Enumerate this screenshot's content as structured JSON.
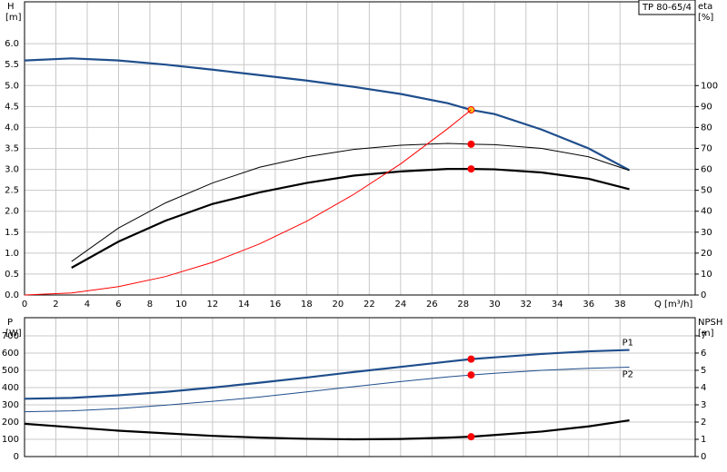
{
  "chart_data": [
    {
      "type": "line",
      "title": "TP 80-65/4",
      "ylabel": "H",
      "yunit": "[m]",
      "y2label": "eta",
      "y2unit": "[%]",
      "xlabel": "Q [m³/h]",
      "x": [
        0,
        3,
        6,
        9,
        12,
        15,
        18,
        21,
        24,
        27,
        28.5,
        30,
        33,
        36,
        38.6
      ],
      "xlim": [
        0,
        42.8
      ],
      "xticks": [
        0,
        2,
        4,
        6,
        8,
        10,
        12,
        14,
        16,
        18,
        20,
        22,
        24,
        26,
        28,
        30,
        32,
        34,
        36,
        38
      ],
      "ylim": [
        0,
        7
      ],
      "yticks": [
        {
          "value": 0,
          "label": "0.0"
        },
        {
          "value": 0.5,
          "label": "0.5"
        },
        {
          "value": 1,
          "label": "1.0"
        },
        {
          "value": 1.5,
          "label": "1.5"
        },
        {
          "value": 2,
          "label": "2.0"
        },
        {
          "value": 2.5,
          "label": "2.5"
        },
        {
          "value": 3,
          "label": "3.0"
        },
        {
          "value": 3.5,
          "label": "3.5"
        },
        {
          "value": 4,
          "label": "4.0"
        },
        {
          "value": 4.5,
          "label": "4.5"
        },
        {
          "value": 5,
          "label": "5.0"
        },
        {
          "value": 5.5,
          "label": "5.5"
        },
        {
          "value": 6,
          "label": "6.0"
        }
      ],
      "y2lim": [
        0,
        140
      ],
      "y2ticks": [
        0,
        10,
        20,
        30,
        40,
        50,
        60,
        70,
        80,
        90,
        100
      ],
      "grid": true,
      "operating_point": 28.5,
      "series": [
        {
          "color": "#1f4e8c",
          "style": "thick",
          "marker_color": "#f5c518",
          "values": [
            5.6,
            5.65,
            5.6,
            5.5,
            5.38,
            5.25,
            5.12,
            4.97,
            4.8,
            4.58,
            4.42,
            4.32,
            3.95,
            3.5,
            2.98
          ]
        },
        {
          "color": "#000000",
          "style": "thin",
          "axis": "y2",
          "marker_color": "#ff0000",
          "values": [
            null,
            16,
            32,
            44,
            53.5,
            61,
            66,
            69.5,
            71.5,
            72.4,
            72,
            71.8,
            70,
            66,
            59.5
          ]
        },
        {
          "color": "#000000",
          "style": "thick",
          "axis": "y2",
          "marker_color": "#ff0000",
          "values": [
            null,
            13,
            25.5,
            35.5,
            43.5,
            49,
            53.5,
            57,
            59,
            60.2,
            60.2,
            60,
            58.5,
            55.5,
            50.5
          ]
        },
        {
          "color": "#ff0000",
          "style": "thin",
          "values": [
            0,
            0.05,
            0.2,
            0.44,
            0.78,
            1.22,
            1.76,
            2.4,
            3.13,
            3.97,
            4.42,
            null,
            null,
            null,
            null
          ]
        }
      ]
    },
    {
      "type": "line",
      "ylabel": "P",
      "yunit": "[W]",
      "y2label": "NPSH",
      "y2unit": "[m]",
      "x": [
        0,
        3,
        6,
        9,
        12,
        15,
        18,
        21,
        24,
        27,
        28.5,
        30,
        33,
        36,
        38.6
      ],
      "xlim": [
        0,
        42.8
      ],
      "xticks": [
        0,
        2,
        4,
        6,
        8,
        10,
        12,
        14,
        16,
        18,
        20,
        22,
        24,
        26,
        28,
        30,
        32,
        34,
        36,
        38
      ],
      "ylim": [
        0,
        805
      ],
      "yticks": [
        0,
        100,
        200,
        300,
        400,
        500,
        600,
        700
      ],
      "y2lim": [
        0,
        8.05
      ],
      "y2ticks": [
        0,
        1,
        2,
        3,
        4,
        5,
        6,
        7
      ],
      "grid": true,
      "operating_point": 28.5,
      "series": [
        {
          "name": "P1",
          "color": "#1f4e8c",
          "style": "thick",
          "marker_color": "#ff0000",
          "values": [
            335,
            340,
            355,
            375,
            400,
            428,
            458,
            490,
            520,
            550,
            565,
            575,
            595,
            610,
            618
          ]
        },
        {
          "name": "P2",
          "color": "#1f4e8c",
          "style": "thin",
          "marker_color": "#ff0000",
          "values": [
            260,
            265,
            278,
            298,
            320,
            345,
            375,
            405,
            435,
            462,
            473,
            483,
            500,
            512,
            518
          ]
        },
        {
          "color": "#000000",
          "style": "thick",
          "axis": "y2",
          "marker_color": "#ff0000",
          "values": [
            1.9,
            1.7,
            1.5,
            1.35,
            1.2,
            1.1,
            1.03,
            1.0,
            1.02,
            1.1,
            1.15,
            1.25,
            1.45,
            1.75,
            2.1
          ]
        }
      ]
    }
  ]
}
